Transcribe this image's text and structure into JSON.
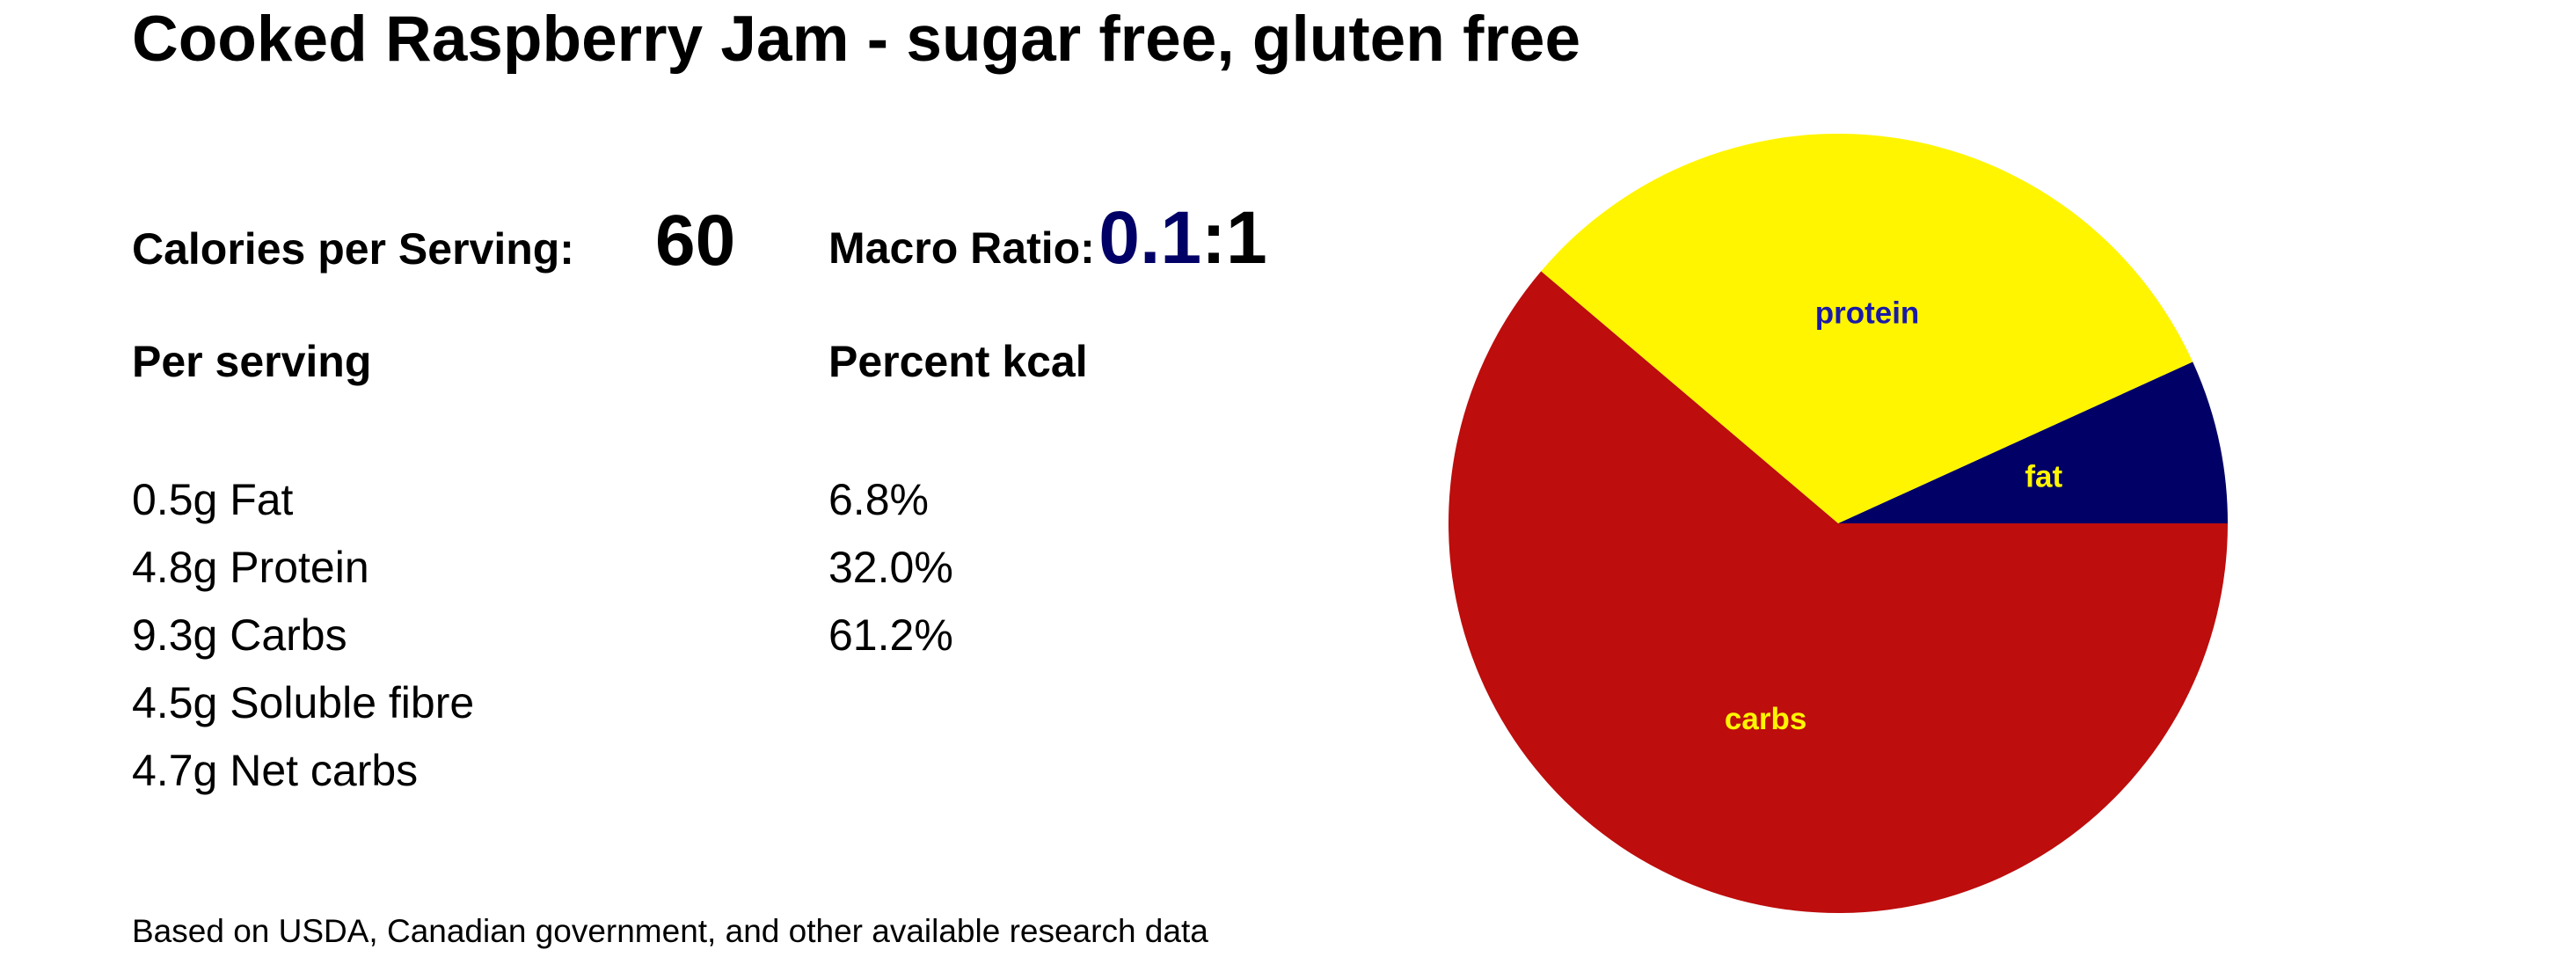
{
  "title": "Cooked Raspberry Jam - sugar free, gluten free",
  "calories": {
    "label": "Calories per Serving:",
    "value": "60"
  },
  "macro_ratio": {
    "label": "Macro Ratio:",
    "main": "0.1",
    "rest": ":1",
    "main_color": "#000066"
  },
  "per_serving": {
    "heading": "Per serving",
    "items": [
      "0.5g Fat",
      "4.8g Protein",
      "9.3g Carbs",
      "4.5g Soluble fibre",
      "4.7g Net carbs"
    ]
  },
  "percent_kcal": {
    "heading": "Percent kcal",
    "items": [
      "6.8%",
      "32.0%",
      "61.2%"
    ]
  },
  "footnote": "Based on USDA, Canadian government, and other available research data",
  "chart_data": {
    "type": "pie",
    "start": "3 o'clock, counter-clockwise",
    "slices": [
      {
        "label": "fat",
        "value": 6.8,
        "color": "#000066",
        "label_color": "#fff500"
      },
      {
        "label": "protein",
        "value": 32.0,
        "color": "#fff500",
        "label_color": "#1a1aa6"
      },
      {
        "label": "carbs",
        "value": 61.2,
        "color": "#bd0d0d",
        "label_color": "#fff500"
      }
    ]
  }
}
